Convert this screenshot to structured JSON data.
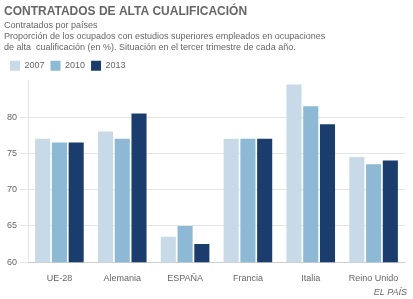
{
  "chart_data": {
    "type": "bar",
    "title": "CONTRATADOS DE ALTA CUALIFICACIÓN",
    "subtitle": "Contratados por países",
    "description": [
      "Proporción de los ocupados con estudios superiores empleados en ocupaciones",
      "de alta  cualificación (en %). Situación en el tercer trimestre de cada año."
    ],
    "source": "EL PAÍS",
    "categories": [
      "UE-28",
      "Alemania",
      "ESPAÑA",
      "Francia",
      "Italia",
      "Reino Unido"
    ],
    "series": [
      {
        "name": "2007",
        "color": "#c8dae8",
        "values": [
          77.0,
          78.0,
          63.5,
          77.0,
          84.5,
          74.5
        ]
      },
      {
        "name": "2010",
        "color": "#8db9d4",
        "values": [
          76.5,
          77.0,
          65.0,
          77.0,
          81.5,
          73.5
        ]
      },
      {
        "name": "2013",
        "color": "#1b3d6e",
        "values": [
          76.5,
          80.5,
          62.5,
          77.0,
          79.0,
          74.0
        ]
      }
    ],
    "ylim": [
      60,
      85
    ],
    "yticks": [
      60,
      65,
      70,
      75,
      80
    ],
    "grid": true,
    "legend": "upper left"
  }
}
